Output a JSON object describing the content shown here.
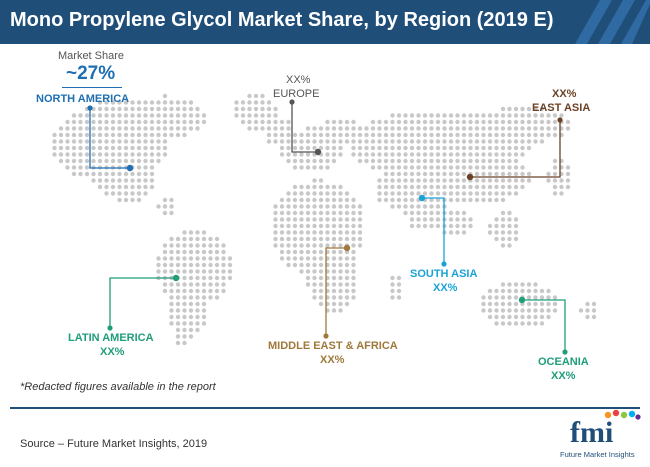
{
  "title": "Mono Propylene Glycol Market Share, by Region (2019 E)",
  "market_share_label": "Market Share",
  "regions": {
    "north_america": {
      "name": "NORTH AMERICA",
      "value": "~27%",
      "color": "#1f6fb2"
    },
    "europe": {
      "name": "EUROPE",
      "value": "XX%",
      "color": "#555555"
    },
    "east_asia": {
      "name": "EAST ASIA",
      "value": "XX%",
      "color": "#6b4226"
    },
    "south_asia": {
      "name": "SOUTH ASIA",
      "value": "XX%",
      "color": "#1ba3d6"
    },
    "latin_america": {
      "name": "LATIN AMERICA",
      "value": "XX%",
      "color": "#1f9e7a"
    },
    "middle_east_africa": {
      "name": "MIDDLE EAST & AFRICA",
      "value": "XX%",
      "color": "#a0783c"
    },
    "oceania": {
      "name": "OCEANIA",
      "value": "XX%",
      "color": "#1f9e7a"
    }
  },
  "note": "*Redacted figures available in the report",
  "source": "Source – Future Market Insights, 2019",
  "logo": {
    "letters": "fmi",
    "tagline": "Future Market Insights"
  },
  "colors": {
    "title_bg": "#1f4e79",
    "dots": "#c8c8c8",
    "logo_blue": "#1f4e79"
  }
}
